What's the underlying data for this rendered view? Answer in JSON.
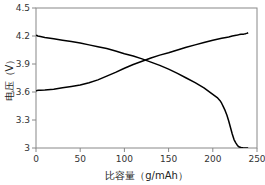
{
  "chart_data": {
    "type": "line",
    "xlabel": "比容量（g/mAh）",
    "ylabel": "电压（V）",
    "xlim": [
      0,
      250
    ],
    "ylim": [
      3.0,
      4.5
    ],
    "xticks": [
      0,
      50,
      100,
      150,
      200,
      250
    ],
    "yticks": [
      3,
      3.3,
      3.6,
      3.9,
      4.2,
      4.5
    ],
    "grid": false,
    "series": [
      {
        "color": "#000000",
        "x": [
          0,
          1,
          3,
          5,
          10,
          20,
          30,
          40,
          50,
          60,
          70,
          80,
          90,
          100,
          110,
          120,
          130,
          140,
          150,
          160,
          170,
          180,
          190,
          200,
          205,
          210,
          215,
          218,
          220,
          222,
          225,
          228,
          230,
          232,
          235,
          237,
          238,
          239,
          240
        ],
        "values": [
          3.61,
          3.615,
          3.618,
          3.62,
          3.622,
          3.63,
          3.645,
          3.66,
          3.675,
          3.7,
          3.73,
          3.77,
          3.81,
          3.855,
          3.895,
          3.93,
          3.965,
          3.995,
          4.02,
          4.05,
          4.08,
          4.105,
          4.13,
          4.155,
          4.165,
          4.175,
          4.185,
          4.19,
          4.195,
          4.2,
          4.205,
          4.21,
          4.215,
          4.218,
          4.22,
          4.225,
          4.228,
          4.23,
          4.235
        ]
      },
      {
        "color": "#000000",
        "x": [
          0,
          1,
          2,
          5,
          10,
          20,
          30,
          40,
          50,
          60,
          70,
          80,
          90,
          100,
          110,
          120,
          130,
          140,
          150,
          160,
          170,
          180,
          190,
          200,
          205,
          208,
          210,
          212,
          214,
          216,
          218,
          220,
          222,
          224,
          226,
          228,
          230,
          232,
          234,
          236,
          238,
          239,
          240
        ],
        "values": [
          4.21,
          4.205,
          4.2,
          4.195,
          4.185,
          4.17,
          4.155,
          4.14,
          4.125,
          4.105,
          4.085,
          4.065,
          4.04,
          4.01,
          3.985,
          3.955,
          3.92,
          3.885,
          3.845,
          3.8,
          3.75,
          3.7,
          3.645,
          3.575,
          3.54,
          3.51,
          3.48,
          3.44,
          3.4,
          3.35,
          3.29,
          3.22,
          3.15,
          3.09,
          3.055,
          3.025,
          3.01,
          3.005,
          3.002,
          3.001,
          3.0,
          3.0,
          3.0
        ]
      }
    ]
  }
}
